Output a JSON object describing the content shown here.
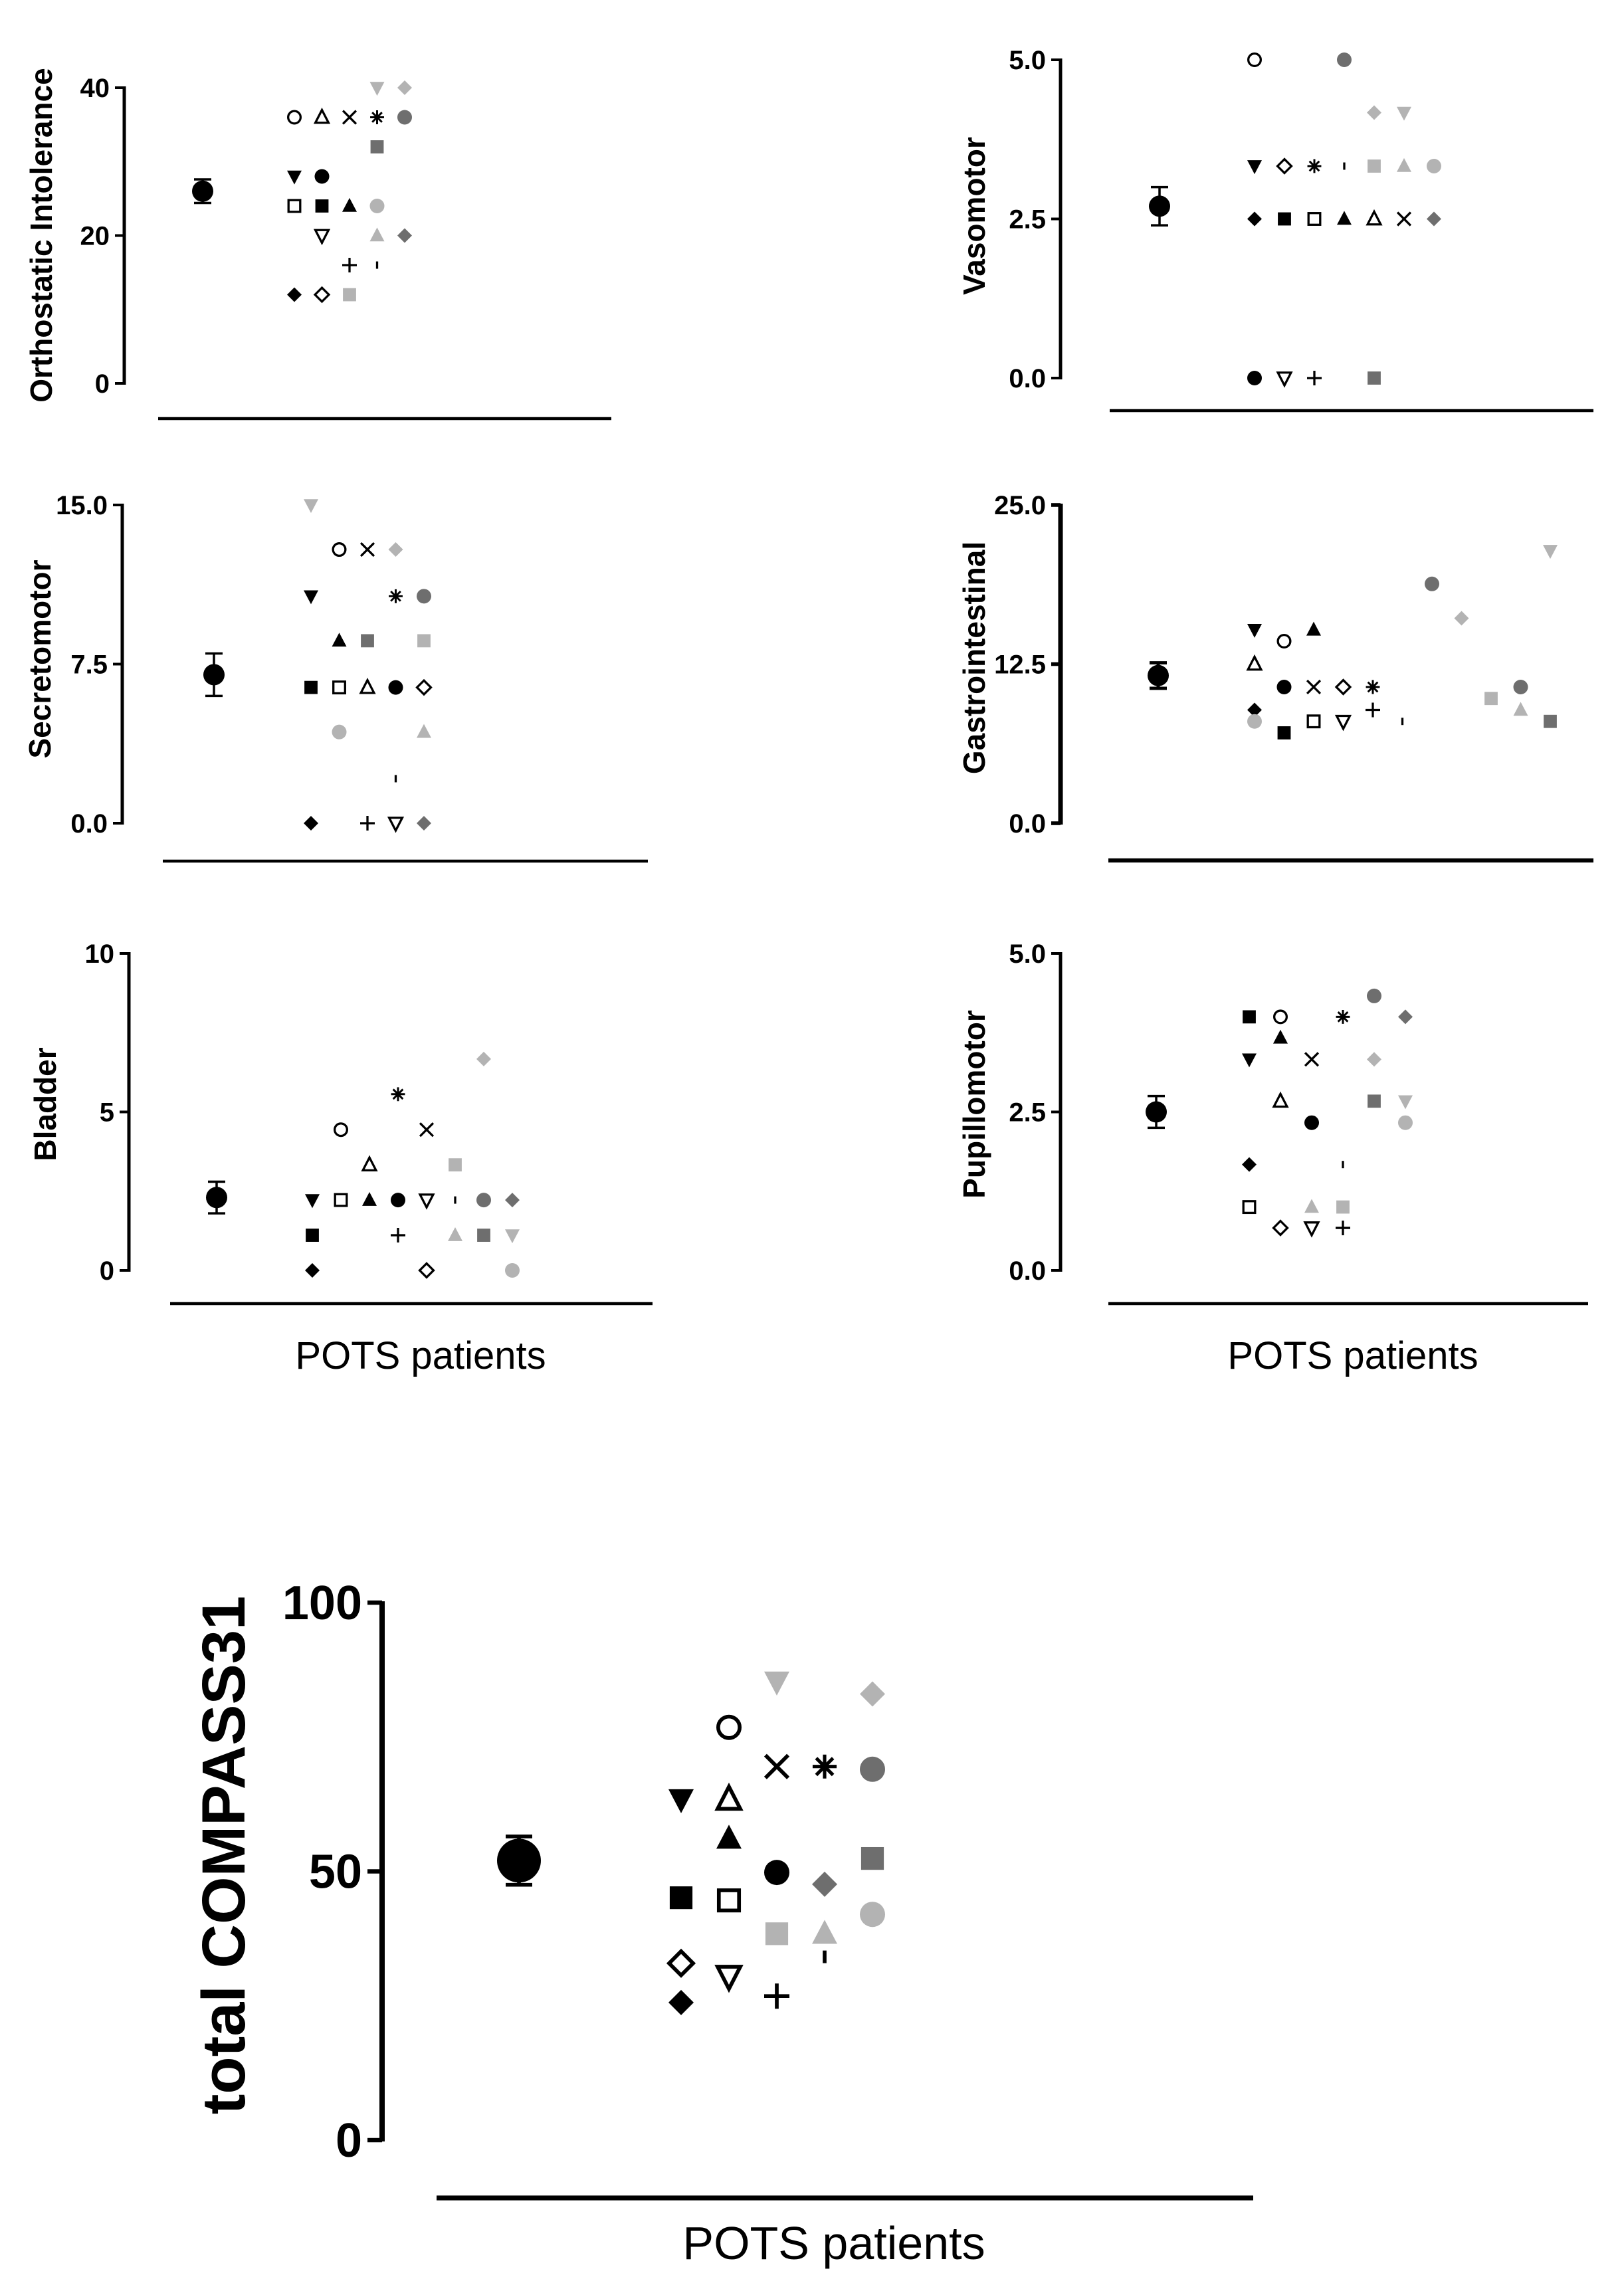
{
  "shared": {
    "xlabel": "POTS patients",
    "colors": {
      "black": "#000000",
      "light_gray": "#b3b3b3",
      "dark_gray": "#6e6e6e"
    }
  },
  "chart_data": [
    {
      "id": "orthostatic",
      "type": "scatter",
      "ylabel": "Orthostatic Intolerance",
      "xlabel": "",
      "ylim": [
        0,
        40
      ],
      "yticks": [
        "0",
        "20",
        "40"
      ],
      "mean": 26,
      "error": 1.6,
      "points": [
        {
          "m": "circle-open",
          "c": "black",
          "x": 0,
          "y": 36
        },
        {
          "m": "triangle-open",
          "c": "black",
          "x": 1,
          "y": 36
        },
        {
          "m": "x",
          "c": "black",
          "x": 2,
          "y": 36
        },
        {
          "m": "asterisk",
          "c": "black",
          "x": 3,
          "y": 36
        },
        {
          "m": "circle",
          "c": "dark",
          "x": 4,
          "y": 36
        },
        {
          "m": "triangle-down",
          "c": "light",
          "x": 3,
          "y": 40
        },
        {
          "m": "diamond",
          "c": "light",
          "x": 4,
          "y": 40
        },
        {
          "m": "square",
          "c": "dark",
          "x": 3,
          "y": 32
        },
        {
          "m": "triangle-down",
          "c": "black",
          "x": 0,
          "y": 28
        },
        {
          "m": "circle",
          "c": "black",
          "x": 1,
          "y": 28
        },
        {
          "m": "square-open",
          "c": "black",
          "x": 0,
          "y": 24
        },
        {
          "m": "square",
          "c": "black",
          "x": 1,
          "y": 24
        },
        {
          "m": "triangle",
          "c": "black",
          "x": 2,
          "y": 24
        },
        {
          "m": "circle",
          "c": "light",
          "x": 3,
          "y": 24
        },
        {
          "m": "triangle-down-open",
          "c": "black",
          "x": 1,
          "y": 20
        },
        {
          "m": "triangle",
          "c": "light",
          "x": 3,
          "y": 20
        },
        {
          "m": "diamond",
          "c": "dark",
          "x": 4,
          "y": 20
        },
        {
          "m": "plus",
          "c": "black",
          "x": 2,
          "y": 16
        },
        {
          "m": "dash",
          "c": "black",
          "x": 3,
          "y": 16
        },
        {
          "m": "diamond",
          "c": "black",
          "x": 0,
          "y": 12
        },
        {
          "m": "diamond-open",
          "c": "black",
          "x": 1,
          "y": 12
        },
        {
          "m": "square",
          "c": "light",
          "x": 2,
          "y": 12
        }
      ]
    },
    {
      "id": "vasomotor",
      "type": "scatter",
      "ylabel": "Vasomotor",
      "xlabel": "",
      "ylim": [
        0,
        5
      ],
      "yticks": [
        "0.0",
        "2.5",
        "5.0"
      ],
      "mean": 2.7,
      "error": 0.3,
      "points": [
        {
          "m": "circle-open",
          "c": "black",
          "x": 0,
          "y": 5
        },
        {
          "m": "circle",
          "c": "dark",
          "x": 3,
          "y": 5
        },
        {
          "m": "diamond",
          "c": "light",
          "x": 4,
          "y": 4.17
        },
        {
          "m": "triangle-down",
          "c": "light",
          "x": 5,
          "y": 4.17
        },
        {
          "m": "triangle-down",
          "c": "black",
          "x": 0,
          "y": 3.33
        },
        {
          "m": "diamond-open",
          "c": "black",
          "x": 1,
          "y": 3.33
        },
        {
          "m": "asterisk",
          "c": "black",
          "x": 2,
          "y": 3.33
        },
        {
          "m": "dash",
          "c": "black",
          "x": 3,
          "y": 3.33
        },
        {
          "m": "square",
          "c": "light",
          "x": 4,
          "y": 3.33
        },
        {
          "m": "triangle",
          "c": "light",
          "x": 5,
          "y": 3.33
        },
        {
          "m": "circle",
          "c": "light",
          "x": 6,
          "y": 3.33
        },
        {
          "m": "diamond",
          "c": "black",
          "x": 0,
          "y": 2.5
        },
        {
          "m": "square",
          "c": "black",
          "x": 1,
          "y": 2.5
        },
        {
          "m": "square-open",
          "c": "black",
          "x": 2,
          "y": 2.5
        },
        {
          "m": "triangle",
          "c": "black",
          "x": 3,
          "y": 2.5
        },
        {
          "m": "triangle-open",
          "c": "black",
          "x": 4,
          "y": 2.5
        },
        {
          "m": "x",
          "c": "black",
          "x": 5,
          "y": 2.5
        },
        {
          "m": "diamond",
          "c": "dark",
          "x": 6,
          "y": 2.5
        },
        {
          "m": "circle",
          "c": "black",
          "x": 0,
          "y": 0
        },
        {
          "m": "triangle-down-open",
          "c": "black",
          "x": 1,
          "y": 0
        },
        {
          "m": "plus",
          "c": "black",
          "x": 2,
          "y": 0
        },
        {
          "m": "square",
          "c": "dark",
          "x": 4,
          "y": 0
        }
      ]
    },
    {
      "id": "secretomotor",
      "type": "scatter",
      "ylabel": "Secretomotor",
      "xlabel": "",
      "ylim": [
        0,
        15
      ],
      "yticks": [
        "0.0",
        "7.5",
        "15.0"
      ],
      "mean": 7,
      "error": 1,
      "points": [
        {
          "m": "triangle-down",
          "c": "light",
          "x": 0,
          "y": 15
        },
        {
          "m": "circle-open",
          "c": "black",
          "x": 1,
          "y": 12.9
        },
        {
          "m": "x",
          "c": "black",
          "x": 2,
          "y": 12.9
        },
        {
          "m": "diamond",
          "c": "light",
          "x": 3,
          "y": 12.9
        },
        {
          "m": "triangle-down",
          "c": "black",
          "x": 0,
          "y": 10.7
        },
        {
          "m": "asterisk",
          "c": "black",
          "x": 3,
          "y": 10.7
        },
        {
          "m": "circle",
          "c": "dark",
          "x": 4,
          "y": 10.7
        },
        {
          "m": "triangle",
          "c": "black",
          "x": 1,
          "y": 8.6
        },
        {
          "m": "square",
          "c": "dark",
          "x": 2,
          "y": 8.6
        },
        {
          "m": "square",
          "c": "light",
          "x": 4,
          "y": 8.6
        },
        {
          "m": "square",
          "c": "black",
          "x": 0,
          "y": 6.4
        },
        {
          "m": "square-open",
          "c": "black",
          "x": 1,
          "y": 6.4
        },
        {
          "m": "triangle-open",
          "c": "black",
          "x": 2,
          "y": 6.4
        },
        {
          "m": "circle",
          "c": "black",
          "x": 3,
          "y": 6.4
        },
        {
          "m": "diamond-open",
          "c": "black",
          "x": 4,
          "y": 6.4
        },
        {
          "m": "circle",
          "c": "light",
          "x": 1,
          "y": 4.3
        },
        {
          "m": "triangle",
          "c": "light",
          "x": 4,
          "y": 4.3
        },
        {
          "m": "dash",
          "c": "black",
          "x": 3,
          "y": 2.1
        },
        {
          "m": "diamond",
          "c": "black",
          "x": 0,
          "y": 0
        },
        {
          "m": "plus",
          "c": "black",
          "x": 2,
          "y": 0
        },
        {
          "m": "triangle-down-open",
          "c": "black",
          "x": 3,
          "y": 0
        },
        {
          "m": "diamond",
          "c": "dark",
          "x": 4,
          "y": 0
        }
      ]
    },
    {
      "id": "gastrointestinal",
      "type": "scatter",
      "ylabel": "Gastrointestinal",
      "xlabel": "",
      "ylim": [
        0,
        25
      ],
      "yticks": [
        "0.0",
        "12.5",
        "25.0"
      ],
      "mean": 11.6,
      "error": 1,
      "points": [
        {
          "m": "triangle-down",
          "c": "light",
          "x": 10,
          "y": 21.4
        },
        {
          "m": "circle",
          "c": "dark",
          "x": 6,
          "y": 18.8
        },
        {
          "m": "diamond",
          "c": "light",
          "x": 7,
          "y": 16.1
        },
        {
          "m": "triangle-down",
          "c": "black",
          "x": 0,
          "y": 15.2
        },
        {
          "m": "circle-open",
          "c": "black",
          "x": 1,
          "y": 14.3
        },
        {
          "m": "triangle",
          "c": "black",
          "x": 2,
          "y": 15.2
        },
        {
          "m": "triangle-open",
          "c": "black",
          "x": 0,
          "y": 12.5
        },
        {
          "m": "circle",
          "c": "black",
          "x": 1,
          "y": 10.7
        },
        {
          "m": "x",
          "c": "black",
          "x": 2,
          "y": 10.7
        },
        {
          "m": "diamond-open",
          "c": "black",
          "x": 3,
          "y": 10.7
        },
        {
          "m": "asterisk",
          "c": "black",
          "x": 4,
          "y": 10.7
        },
        {
          "m": "circle",
          "c": "dark",
          "x": 9,
          "y": 10.7
        },
        {
          "m": "square",
          "c": "light",
          "x": 8,
          "y": 9.8
        },
        {
          "m": "diamond",
          "c": "black",
          "x": 0,
          "y": 8.9
        },
        {
          "m": "plus",
          "c": "black",
          "x": 4,
          "y": 8.9
        },
        {
          "m": "triangle",
          "c": "light",
          "x": 9,
          "y": 8.9
        },
        {
          "m": "circle",
          "c": "light",
          "x": 0,
          "y": 8
        },
        {
          "m": "square-open",
          "c": "black",
          "x": 2,
          "y": 8
        },
        {
          "m": "triangle-down-open",
          "c": "black",
          "x": 3,
          "y": 8
        },
        {
          "m": "dash",
          "c": "black",
          "x": 5,
          "y": 8
        },
        {
          "m": "square",
          "c": "dark",
          "x": 10,
          "y": 8
        },
        {
          "m": "square",
          "c": "black",
          "x": 1,
          "y": 7.1
        }
      ]
    },
    {
      "id": "bladder",
      "type": "scatter",
      "ylabel": "Bladder",
      "xlabel": "POTS patients",
      "ylim": [
        0,
        10
      ],
      "yticks": [
        "0",
        "5",
        "10"
      ],
      "mean": 2.3,
      "error": 0.5,
      "points": [
        {
          "m": "diamond",
          "c": "light",
          "x": 6,
          "y": 6.67
        },
        {
          "m": "asterisk",
          "c": "black",
          "x": 3,
          "y": 5.56
        },
        {
          "m": "circle-open",
          "c": "black",
          "x": 1,
          "y": 4.44
        },
        {
          "m": "x",
          "c": "black",
          "x": 4,
          "y": 4.44
        },
        {
          "m": "triangle-open",
          "c": "black",
          "x": 2,
          "y": 3.33
        },
        {
          "m": "square",
          "c": "light",
          "x": 5,
          "y": 3.33
        },
        {
          "m": "triangle-down",
          "c": "black",
          "x": 0,
          "y": 2.22
        },
        {
          "m": "square-open",
          "c": "black",
          "x": 1,
          "y": 2.22
        },
        {
          "m": "triangle",
          "c": "black",
          "x": 2,
          "y": 2.22
        },
        {
          "m": "circle",
          "c": "black",
          "x": 3,
          "y": 2.22
        },
        {
          "m": "triangle-down-open",
          "c": "black",
          "x": 4,
          "y": 2.22
        },
        {
          "m": "dash",
          "c": "black",
          "x": 5,
          "y": 2.22
        },
        {
          "m": "circle",
          "c": "dark",
          "x": 6,
          "y": 2.22
        },
        {
          "m": "diamond",
          "c": "dark",
          "x": 7,
          "y": 2.22
        },
        {
          "m": "square",
          "c": "black",
          "x": 0,
          "y": 1.11
        },
        {
          "m": "plus",
          "c": "black",
          "x": 3,
          "y": 1.11
        },
        {
          "m": "triangle",
          "c": "light",
          "x": 5,
          "y": 1.11
        },
        {
          "m": "square",
          "c": "dark",
          "x": 6,
          "y": 1.11
        },
        {
          "m": "triangle-down",
          "c": "light",
          "x": 7,
          "y": 1.11
        },
        {
          "m": "diamond",
          "c": "black",
          "x": 0,
          "y": 0
        },
        {
          "m": "diamond-open",
          "c": "black",
          "x": 4,
          "y": 0
        },
        {
          "m": "circle",
          "c": "light",
          "x": 7,
          "y": 0
        }
      ]
    },
    {
      "id": "pupillomotor",
      "type": "scatter",
      "ylabel": "Pupillomotor",
      "xlabel": "POTS patients",
      "ylim": [
        0,
        5
      ],
      "yticks": [
        "0.0",
        "2.5",
        "5.0"
      ],
      "mean": 2.5,
      "error": 0.25,
      "points": [
        {
          "m": "circle",
          "c": "dark",
          "x": 4,
          "y": 4.33
        },
        {
          "m": "square",
          "c": "black",
          "x": 0,
          "y": 4
        },
        {
          "m": "circle-open",
          "c": "black",
          "x": 1,
          "y": 4
        },
        {
          "m": "asterisk",
          "c": "black",
          "x": 3,
          "y": 4
        },
        {
          "m": "diamond",
          "c": "dark",
          "x": 5,
          "y": 4
        },
        {
          "m": "triangle",
          "c": "black",
          "x": 1,
          "y": 3.67
        },
        {
          "m": "triangle-down",
          "c": "black",
          "x": 0,
          "y": 3.33
        },
        {
          "m": "x",
          "c": "black",
          "x": 2,
          "y": 3.33
        },
        {
          "m": "diamond",
          "c": "light",
          "x": 4,
          "y": 3.33
        },
        {
          "m": "triangle-open",
          "c": "black",
          "x": 1,
          "y": 2.67
        },
        {
          "m": "square",
          "c": "dark",
          "x": 4,
          "y": 2.67
        },
        {
          "m": "triangle-down",
          "c": "light",
          "x": 5,
          "y": 2.67
        },
        {
          "m": "circle",
          "c": "black",
          "x": 2,
          "y": 2.33
        },
        {
          "m": "circle",
          "c": "light",
          "x": 5,
          "y": 2.33
        },
        {
          "m": "diamond",
          "c": "black",
          "x": 0,
          "y": 1.67
        },
        {
          "m": "dash",
          "c": "black",
          "x": 3,
          "y": 1.67
        },
        {
          "m": "square-open",
          "c": "black",
          "x": 0,
          "y": 1
        },
        {
          "m": "triangle",
          "c": "light",
          "x": 2,
          "y": 1
        },
        {
          "m": "square",
          "c": "light",
          "x": 3,
          "y": 1
        },
        {
          "m": "diamond-open",
          "c": "black",
          "x": 1,
          "y": 0.67
        },
        {
          "m": "triangle-down-open",
          "c": "black",
          "x": 2,
          "y": 0.67
        },
        {
          "m": "plus",
          "c": "black",
          "x": 3,
          "y": 0.67
        }
      ]
    },
    {
      "id": "total",
      "type": "scatter",
      "ylabel": "total COMPASS31",
      "xlabel": "POTS patients",
      "ylim": [
        0,
        100
      ],
      "yticks": [
        "0",
        "50",
        "100"
      ],
      "mean": 52,
      "error": 4.5,
      "points": [
        {
          "m": "triangle-down",
          "c": "light",
          "x": 2,
          "y": 85.3
        },
        {
          "m": "diamond",
          "c": "light",
          "x": 4,
          "y": 83
        },
        {
          "m": "circle-open",
          "c": "black",
          "x": 1,
          "y": 76.8
        },
        {
          "m": "x",
          "c": "black",
          "x": 2,
          "y": 69.5
        },
        {
          "m": "asterisk",
          "c": "black",
          "x": 3,
          "y": 69.5
        },
        {
          "m": "circle",
          "c": "dark",
          "x": 4,
          "y": 69
        },
        {
          "m": "triangle-down",
          "c": "black",
          "x": 0,
          "y": 63.4
        },
        {
          "m": "triangle-open",
          "c": "black",
          "x": 1,
          "y": 63.4
        },
        {
          "m": "triangle",
          "c": "black",
          "x": 1,
          "y": 56.1
        },
        {
          "m": "square",
          "c": "dark",
          "x": 4,
          "y": 52.4
        },
        {
          "m": "circle",
          "c": "black",
          "x": 2,
          "y": 49.8
        },
        {
          "m": "diamond",
          "c": "dark",
          "x": 3,
          "y": 47.6
        },
        {
          "m": "square",
          "c": "black",
          "x": 0,
          "y": 45.1
        },
        {
          "m": "square-open",
          "c": "black",
          "x": 1,
          "y": 44.6
        },
        {
          "m": "circle",
          "c": "light",
          "x": 4,
          "y": 42
        },
        {
          "m": "square",
          "c": "light",
          "x": 2,
          "y": 38.4
        },
        {
          "m": "triangle",
          "c": "light",
          "x": 3,
          "y": 38.4
        },
        {
          "m": "dash",
          "c": "black",
          "x": 3,
          "y": 34.1
        },
        {
          "m": "diamond-open",
          "c": "black",
          "x": 0,
          "y": 32.9
        },
        {
          "m": "triangle-down-open",
          "c": "black",
          "x": 1,
          "y": 30.5
        },
        {
          "m": "plus",
          "c": "black",
          "x": 2,
          "y": 26.8
        },
        {
          "m": "diamond",
          "c": "black",
          "x": 0,
          "y": 25.6
        }
      ]
    }
  ]
}
